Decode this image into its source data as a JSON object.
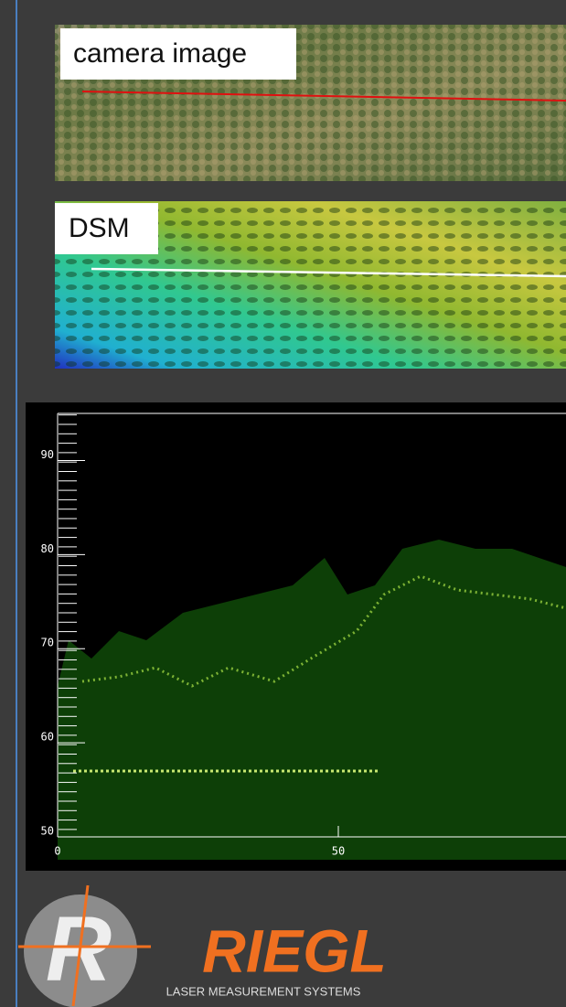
{
  "panels": {
    "camera_label": "camera image",
    "dsm_label": "DSM"
  },
  "chart_data": {
    "type": "scatter",
    "xlim": [
      0,
      90
    ],
    "ylim": [
      50,
      95
    ],
    "xticks": [
      0,
      50
    ],
    "yticks": [
      50,
      60,
      70,
      80,
      90
    ]
  },
  "logo": {
    "name": "RIEGL",
    "tagline": "LASER MEASUREMENT SYSTEMS"
  }
}
